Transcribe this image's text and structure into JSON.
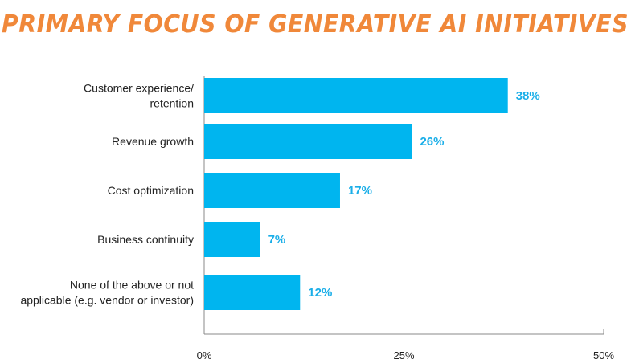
{
  "chart_data": {
    "type": "bar",
    "orientation": "horizontal",
    "title": "PRIMARY FOCUS OF GENERATIVE AI INITIATIVES",
    "categories": [
      [
        "Customer experience/",
        "retention"
      ],
      [
        "Revenue growth"
      ],
      [
        "Cost optimization"
      ],
      [
        "Business continuity"
      ],
      [
        "None of the above or not",
        "applicable (e.g. vendor or investor)"
      ]
    ],
    "values": [
      38,
      26,
      17,
      7,
      12
    ],
    "value_labels": [
      "38%",
      "26%",
      "17%",
      "7%",
      "12%"
    ],
    "xlim": [
      0,
      50
    ],
    "ticks": [
      0,
      25,
      50
    ],
    "tick_labels": [
      "0%",
      "25%",
      "50%"
    ],
    "bar_color": "#00b5ef",
    "label_color": "#1aaee8",
    "title_color": "#f0883a",
    "grid": false,
    "legend": "none"
  }
}
